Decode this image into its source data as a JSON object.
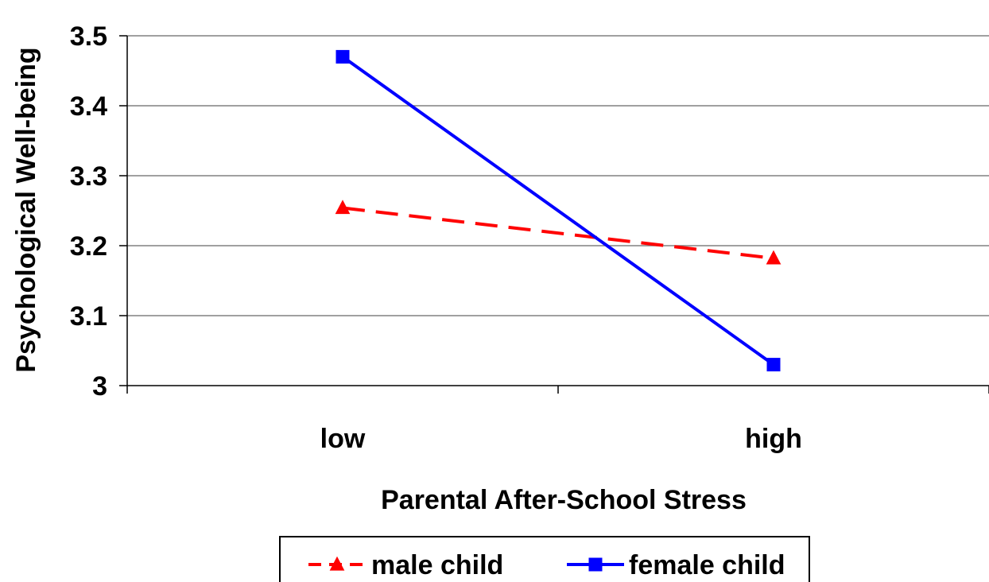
{
  "chart_data": {
    "type": "line",
    "categories": [
      "low",
      "high"
    ],
    "series": [
      {
        "name": "male child",
        "values": [
          3.254,
          3.182
        ],
        "color": "#ff0000",
        "dash": "dashed",
        "marker": "triangle"
      },
      {
        "name": "female child",
        "values": [
          3.47,
          3.03
        ],
        "color": "#0000ff",
        "dash": "solid",
        "marker": "square"
      }
    ],
    "xlabel": "Parental After-School Stress",
    "ylabel": "Psychological Well-being",
    "ylim": [
      3,
      3.5
    ],
    "yticks": [
      3,
      3.1,
      3.2,
      3.3,
      3.4,
      3.5
    ],
    "ytick_labels": [
      "3",
      "3.1",
      "3.2",
      "3.3",
      "3.4",
      "3.5"
    ],
    "grid": true,
    "legend_position": "bottom"
  }
}
